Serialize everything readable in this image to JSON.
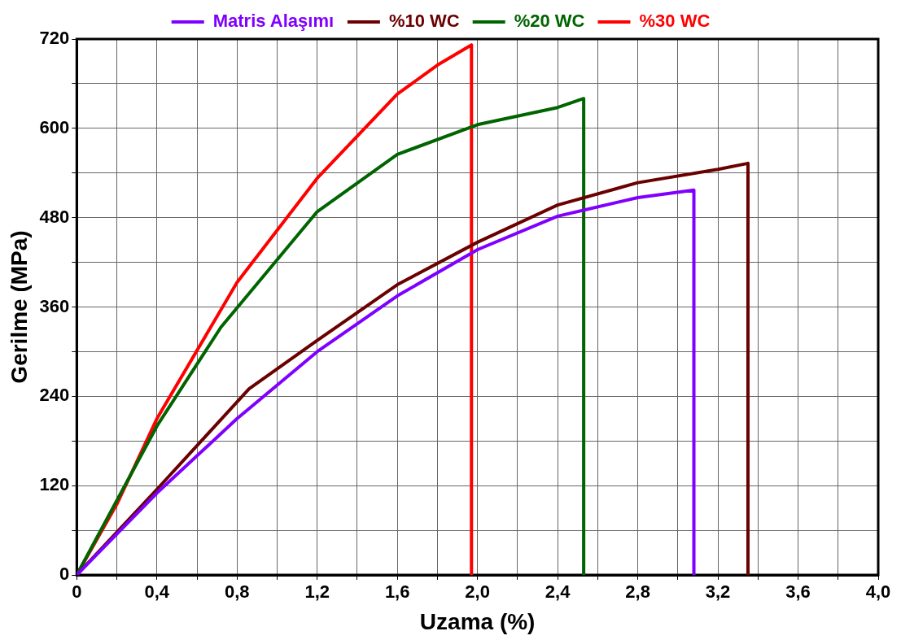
{
  "chart_data": {
    "type": "line",
    "xlabel": "Uzama (%)",
    "ylabel": "Gerilme (MPa)",
    "legend": "top",
    "grid": true,
    "marker": "none",
    "line_style": "solid",
    "xlim": [
      0,
      4.0
    ],
    "ylim": [
      0,
      720
    ],
    "xticks": [
      0,
      {
        "value": 0.2,
        "label": null
      },
      {
        "value": 0.4,
        "label": "0,4"
      },
      {
        "value": 0.6,
        "label": null
      },
      {
        "value": 0.8,
        "label": "0,8"
      },
      {
        "value": 1.0,
        "label": null
      },
      {
        "value": 1.2,
        "label": "1,2"
      },
      {
        "value": 1.4,
        "label": null
      },
      {
        "value": 1.6,
        "label": "1,6"
      },
      {
        "value": 1.8,
        "label": null
      },
      {
        "value": 2.0,
        "label": "2,0"
      },
      {
        "value": 2.2,
        "label": null
      },
      {
        "value": 2.4,
        "label": "2,4"
      },
      {
        "value": 2.6,
        "label": null
      },
      {
        "value": 2.8,
        "label": "2,8"
      },
      {
        "value": 3.0,
        "label": null
      },
      {
        "value": 3.2,
        "label": "3,2"
      },
      {
        "value": 3.4,
        "label": null
      },
      {
        "value": 3.6,
        "label": "3,6"
      },
      {
        "value": 3.8,
        "label": null
      },
      {
        "value": 4.0,
        "label": "4,0"
      }
    ],
    "yticks": [
      0,
      {
        "value": 60,
        "label": null
      },
      120,
      {
        "value": 180,
        "label": null
      },
      240,
      {
        "value": 300,
        "label": null
      },
      360,
      {
        "value": 420,
        "label": null
      },
      480,
      {
        "value": 540,
        "label": null
      },
      600,
      {
        "value": 660,
        "label": null
      },
      720
    ],
    "series": [
      {
        "name": "Matris Alaşımı",
        "color": "#7f00ff",
        "x": [
          0,
          0.4,
          0.8,
          1.2,
          1.6,
          2.0,
          2.4,
          2.8,
          3.08,
          3.08
        ],
        "values": [
          0,
          110,
          210,
          300,
          375,
          437,
          482,
          507,
          517,
          0
        ]
      },
      {
        "name": "%10 WC",
        "color": "#6b0000",
        "x": [
          0,
          0.4,
          0.86,
          1.2,
          1.6,
          2.0,
          2.4,
          2.8,
          3.2,
          3.35,
          3.35
        ],
        "values": [
          0,
          115,
          250,
          315,
          390,
          447,
          497,
          527,
          545,
          553,
          0
        ]
      },
      {
        "name": "%20 WC",
        "color": "#006400",
        "x": [
          0,
          0.4,
          0.72,
          1.2,
          1.6,
          2.0,
          2.4,
          2.53,
          2.53
        ],
        "values": [
          0,
          200,
          333,
          488,
          565,
          605,
          628,
          640,
          0
        ]
      },
      {
        "name": "%30 WC",
        "color": "#ff0000",
        "x": [
          0,
          0.2,
          0.4,
          0.8,
          1.2,
          1.6,
          1.8,
          1.97,
          1.97
        ],
        "values": [
          0,
          95,
          210,
          393,
          533,
          646,
          685,
          712,
          0
        ]
      }
    ]
  }
}
